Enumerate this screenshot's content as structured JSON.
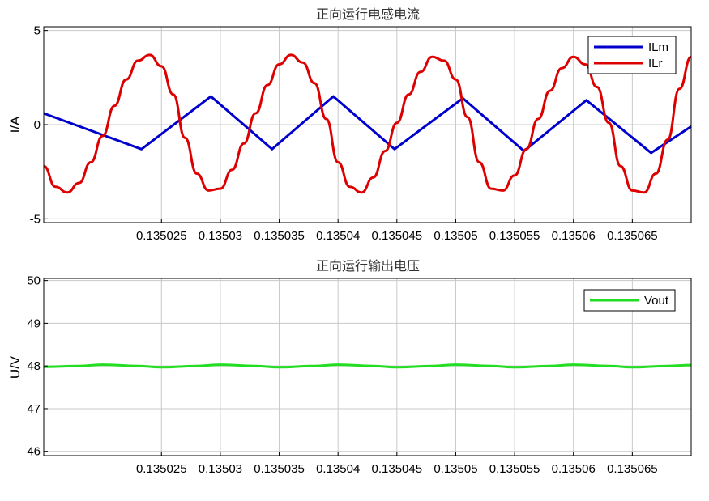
{
  "chart_data": [
    {
      "type": "line",
      "title": "正向运行电感电流",
      "xlabel": "",
      "ylabel": "I/A",
      "xlim": [
        0.135015,
        0.13507
      ],
      "ylim": [
        -5.2,
        5.2
      ],
      "x_ticks": [
        0.135025,
        0.13503,
        0.135035,
        0.13504,
        0.135045,
        0.13505,
        0.135055,
        0.13506,
        0.135065
      ],
      "x_tick_labels": [
        "0.135025",
        "0.13503",
        "0.135035",
        "0.13504",
        "0.135045",
        "0.13505",
        "0.135055",
        "0.13506",
        "0.135065"
      ],
      "y_ticks": [
        -5,
        0,
        5
      ],
      "y_tick_labels": [
        "-5",
        "0",
        "5"
      ],
      "grid": true,
      "legend_position": "top-right",
      "series": [
        {
          "name": "ILm",
          "color": "#0000cc",
          "x": [
            0.135015,
            0.1350233,
            0.1350292,
            0.1350344,
            0.1350396,
            0.1350448,
            0.1350506,
            0.1350558,
            0.1350611,
            0.1350666,
            0.13507
          ],
          "y": [
            0.6,
            -1.3,
            1.5,
            -1.3,
            1.5,
            -1.3,
            1.4,
            -1.4,
            1.3,
            -1.5,
            -0.1
          ]
        },
        {
          "name": "ILr",
          "color": "#dd0000",
          "x": [
            0.135015,
            0.135016,
            0.135017,
            0.135018,
            0.135019,
            0.13502,
            0.135021,
            0.135022,
            0.135023,
            0.135024,
            0.135025,
            0.135026,
            0.135027,
            0.135028,
            0.135029,
            0.13503,
            0.135031,
            0.135032,
            0.135033,
            0.135034,
            0.135035,
            0.135036,
            0.135037,
            0.135038,
            0.135039,
            0.13504,
            0.135041,
            0.135042,
            0.135043,
            0.135044,
            0.135045,
            0.135046,
            0.135047,
            0.135048,
            0.135049,
            0.13505,
            0.135051,
            0.135052,
            0.135053,
            0.135054,
            0.135055,
            0.135056,
            0.135057,
            0.135058,
            0.135059,
            0.13506,
            0.135061,
            0.135062,
            0.135063,
            0.135064,
            0.135065,
            0.135066,
            0.135067,
            0.135068,
            0.135069,
            0.13507
          ],
          "y": [
            -2.2,
            -3.3,
            -3.6,
            -3.1,
            -2.0,
            -0.6,
            1.0,
            2.4,
            3.4,
            3.7,
            3.1,
            1.6,
            -0.7,
            -2.6,
            -3.5,
            -3.4,
            -2.4,
            -1.0,
            0.6,
            2.1,
            3.2,
            3.7,
            3.3,
            2.2,
            0.3,
            -2.0,
            -3.3,
            -3.6,
            -2.8,
            -1.4,
            0.1,
            1.6,
            2.8,
            3.6,
            3.4,
            2.4,
            0.4,
            -2.0,
            -3.4,
            -3.5,
            -2.7,
            -1.3,
            0.3,
            1.8,
            3.0,
            3.6,
            3.2,
            2.0,
            0.1,
            -2.2,
            -3.5,
            -3.6,
            -2.6,
            -0.8,
            1.9,
            3.6
          ]
        }
      ]
    },
    {
      "type": "line",
      "title": "正向运行输出电压",
      "xlabel": "",
      "ylabel": "U/V",
      "xlim": [
        0.135015,
        0.13507
      ],
      "ylim": [
        45.9,
        50.05
      ],
      "x_ticks": [
        0.135025,
        0.13503,
        0.135035,
        0.13504,
        0.135045,
        0.13505,
        0.135055,
        0.13506,
        0.135065
      ],
      "x_tick_labels": [
        "0.135025",
        "0.13503",
        "0.135035",
        "0.13504",
        "0.135045",
        "0.13505",
        "0.135055",
        "0.13506",
        "0.135065"
      ],
      "y_ticks": [
        46,
        47,
        48,
        49,
        50
      ],
      "y_tick_labels": [
        "46",
        "47",
        "48",
        "49",
        "50"
      ],
      "grid": true,
      "legend_position": "top-right",
      "series": [
        {
          "name": "Vout",
          "color": "#22dd22",
          "x": [
            0.135015,
            0.135018,
            0.13502,
            0.135023,
            0.135025,
            0.135028,
            0.13503,
            0.135033,
            0.135035,
            0.135038,
            0.13504,
            0.135043,
            0.135045,
            0.135048,
            0.13505,
            0.135053,
            0.135055,
            0.135058,
            0.13506,
            0.135063,
            0.135065,
            0.135068,
            0.13507
          ],
          "y": [
            47.98,
            48.0,
            48.03,
            48.0,
            47.97,
            48.0,
            48.03,
            48.0,
            47.97,
            48.0,
            48.03,
            48.0,
            47.97,
            48.0,
            48.03,
            48.0,
            47.97,
            48.0,
            48.03,
            48.0,
            47.97,
            48.0,
            48.02
          ]
        }
      ]
    }
  ]
}
